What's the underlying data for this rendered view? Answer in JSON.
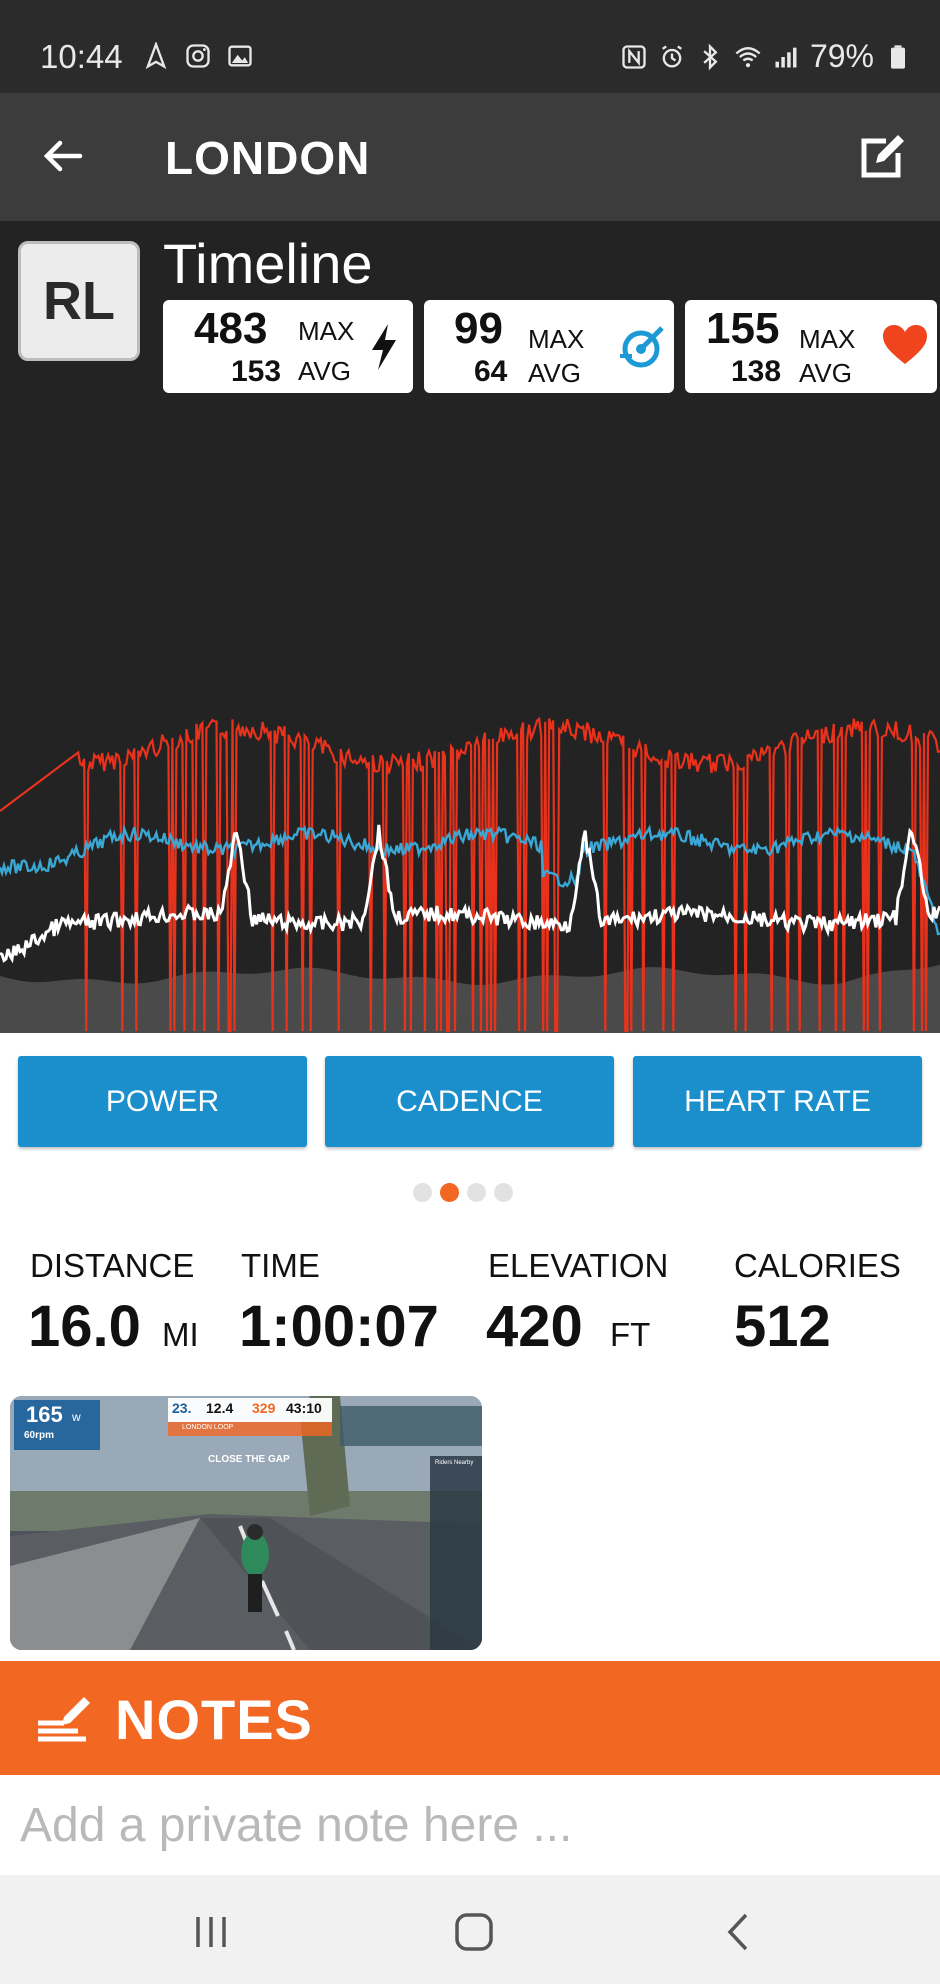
{
  "status_bar": {
    "time": "10:44",
    "battery": "79%",
    "left_icons": [
      "navigation-icon",
      "instagram-icon",
      "gallery-icon"
    ],
    "right_icons": [
      "nfc-icon",
      "alarm-icon",
      "bluetooth-icon",
      "wifi-icon",
      "signal-icon",
      "battery-icon"
    ]
  },
  "app_bar": {
    "title": "LONDON",
    "back_icon": "arrow-left-icon",
    "edit_icon": "edit-icon"
  },
  "header": {
    "avatar_initials": "RL",
    "title": "Timeline",
    "stats": [
      {
        "max": "483",
        "avg": "153",
        "max_label": "MAX",
        "avg_label": "AVG",
        "icon": "lightning-icon",
        "color": "#111111"
      },
      {
        "max": "99",
        "avg": "64",
        "max_label": "MAX",
        "avg_label": "AVG",
        "icon": "cadence-icon",
        "color": "#1b9ad6"
      },
      {
        "max": "155",
        "avg": "138",
        "max_label": "MAX",
        "avg_label": "AVG",
        "icon": "heart-icon",
        "color": "#f0441f"
      }
    ]
  },
  "chart_data": {
    "type": "line",
    "series": [
      {
        "color": "#e8321c"
      },
      {
        "color": "#3aa7d4"
      },
      {
        "color": "#ffffff"
      }
    ],
    "colors": {
      "heart_rate": "#e8321c",
      "cadence": "#3aa7d4",
      "power": "#ffffff",
      "elevation": "#4a4a4a"
    }
  },
  "metric_buttons": [
    "POWER",
    "CADENCE",
    "HEART RATE"
  ],
  "pager": {
    "count": 4,
    "active": 1
  },
  "summary": [
    {
      "label": "DISTANCE",
      "value": "16.0",
      "unit": "MI"
    },
    {
      "label": "TIME",
      "value": "1:00:07",
      "unit": ""
    },
    {
      "label": "ELEVATION",
      "value": "420",
      "unit": "FT"
    },
    {
      "label": "CALORIES",
      "value": "512",
      "unit": ""
    }
  ],
  "thumbnail": {
    "power": "165",
    "power_unit": "w",
    "cadence": "60rpm",
    "hud_speed": "23.",
    "hud_distance": "12.4",
    "hud_elevation": "329",
    "hud_time": "43:10",
    "route": "LONDON LOOP",
    "banner": "CLOSE THE GAP",
    "panel_title": "Riders Nearby"
  },
  "notes": {
    "title": "NOTES",
    "placeholder": "Add a private note here ..."
  },
  "nav": [
    "recent-apps-icon",
    "home-icon",
    "back-icon"
  ],
  "colors": {
    "accent_orange": "#f26722",
    "button_blue": "#1b8fcc",
    "panel_dark": "#232323",
    "appbar": "#3c3c3c"
  }
}
